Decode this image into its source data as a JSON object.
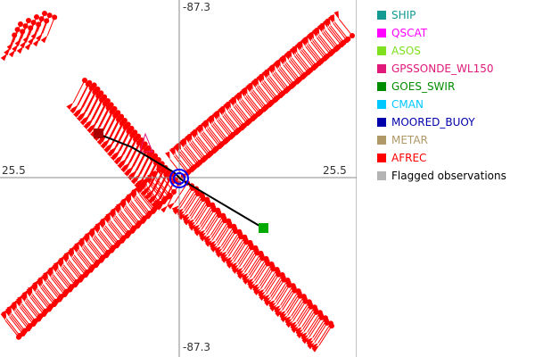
{
  "axes": {
    "top": "-87.3",
    "bottom": "-87.3",
    "left": "25.5",
    "right": "25.5"
  },
  "legend": [
    {
      "label": "SHIP",
      "color": "#139a92"
    },
    {
      "label": "QSCAT",
      "color": "#ff00ff"
    },
    {
      "label": "ASOS",
      "color": "#7fe01f"
    },
    {
      "label": "GPSSONDE_WL150",
      "color": "#e0197a"
    },
    {
      "label": "GOES_SWIR",
      "color": "#008c00"
    },
    {
      "label": "CMAN",
      "color": "#00c8ff"
    },
    {
      "label": "MOORED_BUOY",
      "color": "#0000aa"
    },
    {
      "label": "METAR",
      "color": "#b09868"
    },
    {
      "label": "AFREC",
      "color": "#ff0000"
    },
    {
      "label": "Flagged observations",
      "color": "#b4b4b4",
      "text_color": "#000000"
    }
  ],
  "colors": {
    "barb": "#ff0000",
    "track": "#000000",
    "start_marker": "#aa0000",
    "end_marker": "#00aa00",
    "center_ring": "#0000ff",
    "axis": "#888888"
  }
}
